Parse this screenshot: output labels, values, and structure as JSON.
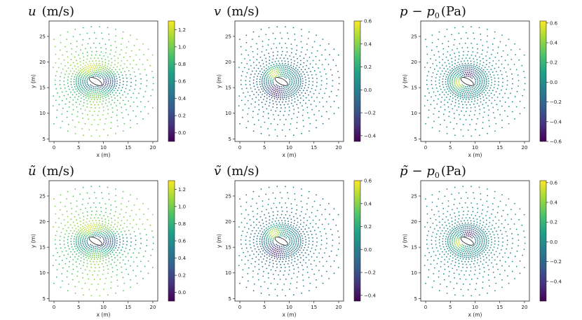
{
  "figure": {
    "description_free": true,
    "colormap_stops": [
      "#440154",
      "#46327e",
      "#365c8d",
      "#277f8e",
      "#1fa187",
      "#4ac16d",
      "#a0da39",
      "#fde725"
    ]
  },
  "chart_data": [
    {
      "type": "scatter",
      "title_parts": [
        "u",
        "(m/s)"
      ],
      "title_text": "u (m/s)",
      "xlabel": "x (m)",
      "ylabel": "y (m)",
      "xlim": [
        -1,
        21
      ],
      "ylim": [
        4.5,
        28
      ],
      "xticks": [
        "0",
        "5",
        "10",
        "15",
        "20"
      ],
      "yticks": [
        "5",
        "10",
        "15",
        "20",
        "25"
      ],
      "field": "u",
      "colorbar": {
        "vmin": -0.1,
        "vmax": 1.3,
        "ticks": [
          "0.0",
          "0.2",
          "0.4",
          "0.6",
          "0.8",
          "1.0",
          "1.2"
        ],
        "tick_values": [
          0.0,
          0.2,
          0.4,
          0.6,
          0.8,
          1.0,
          1.2
        ]
      }
    },
    {
      "type": "scatter",
      "title_parts": [
        "v",
        "(m/s)"
      ],
      "title_text": "v (m/s)",
      "xlabel": "x (m)",
      "ylabel": "y (m)",
      "xlim": [
        -1,
        21
      ],
      "ylim": [
        4.5,
        28
      ],
      "xticks": [
        "0",
        "5",
        "10",
        "15",
        "20"
      ],
      "yticks": [
        "5",
        "10",
        "15",
        "20",
        "25"
      ],
      "field": "v",
      "colorbar": {
        "vmin": -0.45,
        "vmax": 0.6,
        "ticks": [
          "0.6",
          "0.4",
          "0.2",
          "0.0",
          "−0.2",
          "−0.4"
        ],
        "tick_values": [
          0.6,
          0.4,
          0.2,
          0.0,
          -0.2,
          -0.4
        ]
      }
    },
    {
      "type": "scatter",
      "title_parts": [
        "p",
        "− p",
        "0",
        "(Pa)"
      ],
      "title_text": "p − p0 (Pa)",
      "xlabel": "x (m)",
      "ylabel": "y (m)",
      "xlim": [
        -1,
        21
      ],
      "ylim": [
        4.5,
        28
      ],
      "xticks": [
        "0",
        "5",
        "10",
        "15",
        "20"
      ],
      "yticks": [
        "5",
        "10",
        "15",
        "20",
        "25"
      ],
      "field": "p",
      "colorbar": {
        "vmin": -0.6,
        "vmax": 0.62,
        "ticks": [
          "0.6",
          "0.4",
          "0.2",
          "0.0",
          "−0.2",
          "−0.4",
          "−0.6"
        ],
        "tick_values": [
          0.6,
          0.4,
          0.2,
          0.0,
          -0.2,
          -0.4,
          -0.6
        ]
      }
    },
    {
      "type": "scatter",
      "title_parts": [
        "ũ",
        "(m/s)"
      ],
      "title_text": "ũ (m/s)",
      "xlabel": "x (m)",
      "ylabel": "y (m)",
      "xlim": [
        -1,
        21
      ],
      "ylim": [
        4.5,
        28
      ],
      "xticks": [
        "0",
        "5",
        "10",
        "15",
        "20"
      ],
      "yticks": [
        "5",
        "10",
        "15",
        "20",
        "25"
      ],
      "field": "u",
      "colorbar": {
        "vmin": -0.1,
        "vmax": 1.3,
        "ticks": [
          "0.0",
          "0.2",
          "0.4",
          "0.6",
          "0.8",
          "1.0",
          "1.2"
        ],
        "tick_values": [
          0.0,
          0.2,
          0.4,
          0.6,
          0.8,
          1.0,
          1.2
        ]
      }
    },
    {
      "type": "scatter",
      "title_parts": [
        "ṽ",
        "(m/s)"
      ],
      "title_text": "ṽ (m/s)",
      "xlabel": "x (m)",
      "ylabel": "y (m)",
      "xlim": [
        -1,
        21
      ],
      "ylim": [
        4.5,
        28
      ],
      "xticks": [
        "0",
        "5",
        "10",
        "15",
        "20"
      ],
      "yticks": [
        "5",
        "10",
        "15",
        "20",
        "25"
      ],
      "field": "v",
      "colorbar": {
        "vmin": -0.45,
        "vmax": 0.6,
        "ticks": [
          "0.6",
          "0.4",
          "0.2",
          "0.0",
          "−0.2",
          "−0.4"
        ],
        "tick_values": [
          0.6,
          0.4,
          0.2,
          0.0,
          -0.2,
          -0.4
        ]
      }
    },
    {
      "type": "scatter",
      "title_parts": [
        "p̃",
        "− p",
        "0",
        "(Pa)"
      ],
      "title_text": "p̃ − p0 (Pa)",
      "xlabel": "x (m)",
      "ylabel": "y (m)",
      "xlim": [
        -1,
        21
      ],
      "ylim": [
        4.5,
        28
      ],
      "xticks": [
        "0",
        "5",
        "10",
        "15",
        "20"
      ],
      "yticks": [
        "5",
        "10",
        "15",
        "20",
        "25"
      ],
      "field": "p",
      "colorbar": {
        "vmin": -0.6,
        "vmax": 0.62,
        "ticks": [
          "0.6",
          "0.4",
          "0.2",
          "0.0",
          "−0.2",
          "−0.4"
        ],
        "tick_values": [
          0.6,
          0.4,
          0.2,
          0.0,
          -0.2,
          -0.4
        ]
      }
    }
  ]
}
